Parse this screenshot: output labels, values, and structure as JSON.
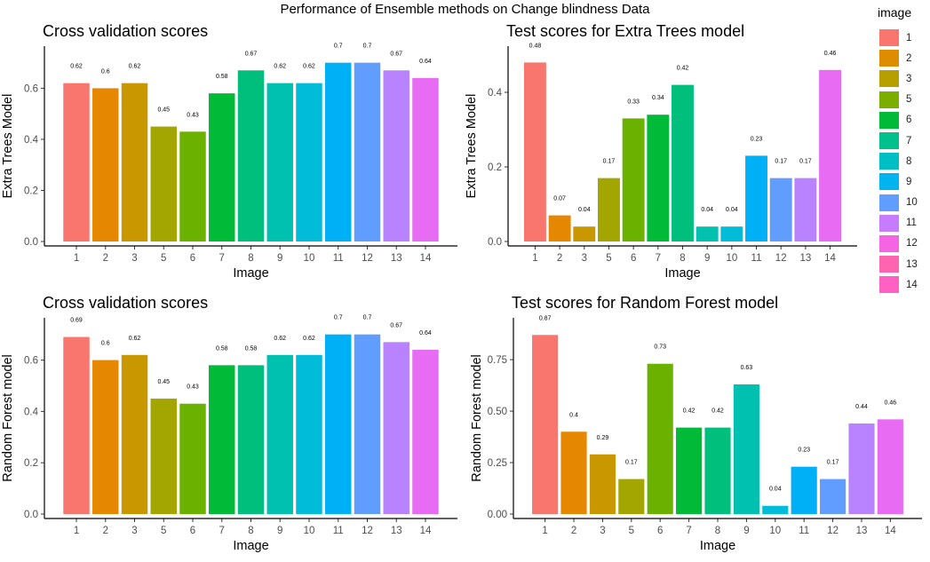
{
  "title": "Performance of Ensemble methods on Change blindness Data",
  "legend": {
    "title": "image",
    "items": [
      {
        "label": "1",
        "color": "#F8766D"
      },
      {
        "label": "2",
        "color": "#DE8C00"
      },
      {
        "label": "3",
        "color": "#B79F00"
      },
      {
        "label": "5",
        "color": "#7CAE00"
      },
      {
        "label": "6",
        "color": "#00BA38"
      },
      {
        "label": "7",
        "color": "#00C08B"
      },
      {
        "label": "8",
        "color": "#00BFC4"
      },
      {
        "label": "9",
        "color": "#00B4F0"
      },
      {
        "label": "10",
        "color": "#619CFF"
      },
      {
        "label": "11",
        "color": "#C77CFF"
      },
      {
        "label": "12",
        "color": "#F564E3"
      },
      {
        "label": "13",
        "color": "#FF64B0"
      },
      {
        "label": "14",
        "color": "#FF61C3"
      }
    ]
  },
  "chart_data": [
    {
      "type": "bar",
      "title": "Cross validation scores",
      "xlabel": "Image",
      "ylabel": "Extra Trees Model",
      "categories": [
        "1",
        "2",
        "3",
        "5",
        "6",
        "7",
        "8",
        "9",
        "10",
        "11",
        "12",
        "13",
        "14"
      ],
      "values": [
        0.62,
        0.6,
        0.62,
        0.45,
        0.43,
        0.58,
        0.67,
        0.62,
        0.62,
        0.7,
        0.7,
        0.67,
        0.64
      ],
      "labels": [
        "0.62",
        "0.6",
        "0.62",
        "0.45",
        "0.43",
        "0.58",
        "0.67",
        "0.62",
        "0.62",
        "0.7",
        "0.7",
        "0.67",
        "0.64"
      ],
      "ylim": [
        0,
        0.73
      ],
      "yticks": [
        0.0,
        0.2,
        0.4,
        0.6
      ],
      "ytick_labels": [
        "0.0",
        "0.2",
        "0.4",
        "0.6"
      ],
      "colors": [
        "#F8766D",
        "#E58700",
        "#C99800",
        "#A3A500",
        "#6BB100",
        "#00BA38",
        "#00BF7D",
        "#00C0AF",
        "#00BCD8",
        "#00B0F6",
        "#619CFF",
        "#B983FF",
        "#E76BF3"
      ]
    },
    {
      "type": "bar",
      "title": "Test scores for Extra Trees model",
      "xlabel": "Image",
      "ylabel": "Extra Trees Model",
      "categories": [
        "1",
        "2",
        "3",
        "5",
        "6",
        "7",
        "8",
        "9",
        "10",
        "11",
        "12",
        "13",
        "14"
      ],
      "values": [
        0.48,
        0.07,
        0.04,
        0.17,
        0.33,
        0.34,
        0.42,
        0.04,
        0.04,
        0.23,
        0.17,
        0.17,
        0.46
      ],
      "labels": [
        "0.48",
        "0.07",
        "0.04",
        "0.17",
        "0.33",
        "0.34",
        "0.42",
        "0.04",
        "0.04",
        "0.23",
        "0.17",
        "0.17",
        "0.46"
      ],
      "ylim": [
        0,
        0.5
      ],
      "yticks": [
        0.0,
        0.2,
        0.4
      ],
      "ytick_labels": [
        "0.0",
        "0.2",
        "0.4"
      ],
      "colors": [
        "#F8766D",
        "#E58700",
        "#C99800",
        "#A3A500",
        "#6BB100",
        "#00BA38",
        "#00BF7D",
        "#00C0AF",
        "#00BCD8",
        "#00B0F6",
        "#619CFF",
        "#B983FF",
        "#E76BF3"
      ]
    },
    {
      "type": "bar",
      "title": "Cross validation scores",
      "xlabel": "Image",
      "ylabel": "Random Forest model",
      "categories": [
        "1",
        "2",
        "3",
        "5",
        "6",
        "7",
        "8",
        "9",
        "10",
        "11",
        "12",
        "13",
        "14"
      ],
      "values": [
        0.69,
        0.6,
        0.62,
        0.45,
        0.43,
        0.58,
        0.58,
        0.62,
        0.62,
        0.7,
        0.7,
        0.67,
        0.64
      ],
      "labels": [
        "0.69",
        "0.6",
        "0.62",
        "0.45",
        "0.43",
        "0.58",
        "0.58",
        "0.62",
        "0.62",
        "0.7",
        "0.7",
        "0.67",
        "0.64"
      ],
      "ylim": [
        0,
        0.73
      ],
      "yticks": [
        0.0,
        0.2,
        0.4,
        0.6
      ],
      "ytick_labels": [
        "0.0",
        "0.2",
        "0.4",
        "0.6"
      ],
      "colors": [
        "#F8766D",
        "#E58700",
        "#C99800",
        "#A3A500",
        "#6BB100",
        "#00BA38",
        "#00BF7D",
        "#00C0AF",
        "#00BCD8",
        "#00B0F6",
        "#619CFF",
        "#B983FF",
        "#E76BF3"
      ]
    },
    {
      "type": "bar",
      "title": "Test scores for Random Forest model",
      "xlabel": "Image",
      "ylabel": "Random Forest model",
      "categories": [
        "1",
        "2",
        "3",
        "5",
        "6",
        "7",
        "8",
        "9",
        "10",
        "11",
        "12",
        "13",
        "14"
      ],
      "values": [
        0.87,
        0.4,
        0.29,
        0.17,
        0.73,
        0.42,
        0.42,
        0.63,
        0.04,
        0.23,
        0.17,
        0.44,
        0.46
      ],
      "labels": [
        "0.87",
        "0.4",
        "0.29",
        "0.17",
        "0.73",
        "0.42",
        "0.42",
        "0.63",
        "0.04",
        "0.23",
        "0.17",
        "0.44",
        "0.46"
      ],
      "ylim": [
        0,
        0.91
      ],
      "yticks": [
        0.0,
        0.25,
        0.5,
        0.75
      ],
      "ytick_labels": [
        "0.00",
        "0.25",
        "0.50",
        "0.75"
      ],
      "colors": [
        "#F8766D",
        "#E58700",
        "#C99800",
        "#A3A500",
        "#6BB100",
        "#00BA38",
        "#00BF7D",
        "#00C0AF",
        "#00BCD8",
        "#00B0F6",
        "#619CFF",
        "#B983FF",
        "#E76BF3"
      ]
    }
  ]
}
